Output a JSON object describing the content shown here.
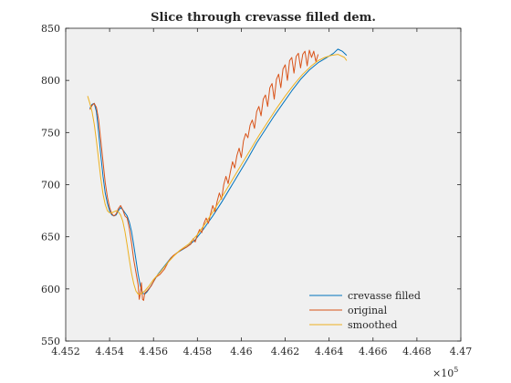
{
  "chart_data": {
    "type": "line",
    "title": "Slice through crevasse filled dem.",
    "xlabel": "",
    "ylabel": "",
    "xlim": [
      4.452,
      4.47
    ],
    "ylim": [
      550,
      850
    ],
    "x_multiplier_label": "×10",
    "x_multiplier_exponent": "5",
    "xticks": [
      4.452,
      4.454,
      4.456,
      4.458,
      4.46,
      4.462,
      4.464,
      4.466,
      4.468,
      4.47
    ],
    "xtick_labels": [
      "4.452",
      "4.454",
      "4.456",
      "4.458",
      "4.46",
      "4.462",
      "4.464",
      "4.466",
      "4.468",
      "4.47"
    ],
    "yticks": [
      550,
      600,
      650,
      700,
      750,
      800,
      850
    ],
    "ytick_labels": [
      "550",
      "600",
      "650",
      "700",
      "750",
      "800",
      "850"
    ],
    "grid": false,
    "legend_position": "bottom-right",
    "background": "#f0f0f0",
    "series": [
      {
        "name": "crevasse filled",
        "color": "#0072bd",
        "points": [
          [
            4.4531,
            773
          ],
          [
            4.4532,
            777
          ],
          [
            4.4533,
            778
          ],
          [
            4.4534,
            770
          ],
          [
            4.4535,
            750
          ],
          [
            4.4536,
            728
          ],
          [
            4.4537,
            708
          ],
          [
            4.4538,
            692
          ],
          [
            4.4539,
            682
          ],
          [
            4.454,
            675
          ],
          [
            4.4541,
            671
          ],
          [
            4.4542,
            670
          ],
          [
            4.4543,
            671
          ],
          [
            4.4544,
            675
          ],
          [
            4.4545,
            678
          ],
          [
            4.4546,
            676
          ],
          [
            4.4547,
            673
          ],
          [
            4.4548,
            670
          ],
          [
            4.4549,
            664
          ],
          [
            4.455,
            655
          ],
          [
            4.4551,
            642
          ],
          [
            4.4552,
            628
          ],
          [
            4.4553,
            614
          ],
          [
            4.4554,
            603
          ],
          [
            4.4555,
            596
          ],
          [
            4.4556,
            595
          ],
          [
            4.4557,
            597
          ],
          [
            4.4558,
            600
          ],
          [
            4.456,
            607
          ],
          [
            4.4562,
            614
          ],
          [
            4.4565,
            622
          ],
          [
            4.4568,
            630
          ],
          [
            4.4571,
            635
          ],
          [
            4.4575,
            640
          ],
          [
            4.4579,
            647
          ],
          [
            4.4583,
            658
          ],
          [
            4.4587,
            670
          ],
          [
            4.4591,
            683
          ],
          [
            4.4595,
            697
          ],
          [
            4.4599,
            711
          ],
          [
            4.4603,
            725
          ],
          [
            4.4607,
            740
          ],
          [
            4.4611,
            753
          ],
          [
            4.4615,
            766
          ],
          [
            4.4619,
            778
          ],
          [
            4.4623,
            790
          ],
          [
            4.4627,
            801
          ],
          [
            4.4631,
            810
          ],
          [
            4.4635,
            817
          ],
          [
            4.4639,
            822
          ],
          [
            4.4642,
            826
          ],
          [
            4.4644,
            830
          ],
          [
            4.4646,
            828
          ],
          [
            4.4648,
            824
          ]
        ]
      },
      {
        "name": "original",
        "color": "#d95319",
        "points": [
          [
            4.4531,
            772
          ],
          [
            4.4532,
            776
          ],
          [
            4.4533,
            778
          ],
          [
            4.4534,
            774
          ],
          [
            4.4535,
            762
          ],
          [
            4.4536,
            742
          ],
          [
            4.4537,
            722
          ],
          [
            4.4538,
            702
          ],
          [
            4.4539,
            688
          ],
          [
            4.454,
            678
          ],
          [
            4.4541,
            672
          ],
          [
            4.4542,
            670
          ],
          [
            4.4543,
            672
          ],
          [
            4.4544,
            677
          ],
          [
            4.4545,
            680
          ],
          [
            4.4546,
            676
          ],
          [
            4.4547,
            670
          ],
          [
            4.4548,
            668
          ],
          [
            4.4549,
            658
          ],
          [
            4.455,
            644
          ],
          [
            4.4551,
            628
          ],
          [
            4.4552,
            616
          ],
          [
            4.4553,
            604
          ],
          [
            4.45535,
            590
          ],
          [
            4.4554,
            596
          ],
          [
            4.45545,
            606
          ],
          [
            4.4555,
            590
          ],
          [
            4.45555,
            589
          ],
          [
            4.4556,
            596
          ],
          [
            4.4557,
            598
          ],
          [
            4.4559,
            603
          ],
          [
            4.4561,
            611
          ],
          [
            4.4563,
            614
          ],
          [
            4.4565,
            619
          ],
          [
            4.4567,
            627
          ],
          [
            4.4569,
            632
          ],
          [
            4.4571,
            635
          ],
          [
            4.4573,
            638
          ],
          [
            4.4575,
            640
          ],
          [
            4.4577,
            643
          ],
          [
            4.4578,
            648
          ],
          [
            4.4579,
            645
          ],
          [
            4.458,
            652
          ],
          [
            4.4581,
            657
          ],
          [
            4.4582,
            654
          ],
          [
            4.4583,
            663
          ],
          [
            4.4584,
            668
          ],
          [
            4.4585,
            663
          ],
          [
            4.4586,
            672
          ],
          [
            4.4587,
            680
          ],
          [
            4.4588,
            674
          ],
          [
            4.4589,
            684
          ],
          [
            4.459,
            692
          ],
          [
            4.4591,
            686
          ],
          [
            4.4592,
            700
          ],
          [
            4.4593,
            708
          ],
          [
            4.4594,
            701
          ],
          [
            4.4595,
            712
          ],
          [
            4.4596,
            722
          ],
          [
            4.4597,
            716
          ],
          [
            4.4598,
            728
          ],
          [
            4.4599,
            735
          ],
          [
            4.46,
            726
          ],
          [
            4.4601,
            742
          ],
          [
            4.4602,
            749
          ],
          [
            4.4603,
            745
          ],
          [
            4.4604,
            757
          ],
          [
            4.4605,
            762
          ],
          [
            4.4606,
            754
          ],
          [
            4.4607,
            770
          ],
          [
            4.4608,
            775
          ],
          [
            4.4609,
            766
          ],
          [
            4.461,
            782
          ],
          [
            4.4611,
            786
          ],
          [
            4.4612,
            775
          ],
          [
            4.4613,
            793
          ],
          [
            4.4614,
            797
          ],
          [
            4.4615,
            782
          ],
          [
            4.4616,
            801
          ],
          [
            4.4617,
            806
          ],
          [
            4.4618,
            793
          ],
          [
            4.4619,
            811
          ],
          [
            4.462,
            815
          ],
          [
            4.4621,
            800
          ],
          [
            4.4622,
            819
          ],
          [
            4.4623,
            822
          ],
          [
            4.4624,
            807
          ],
          [
            4.4625,
            823
          ],
          [
            4.4626,
            826
          ],
          [
            4.4627,
            812
          ],
          [
            4.4628,
            825
          ],
          [
            4.4629,
            828
          ],
          [
            4.463,
            814
          ],
          [
            4.4631,
            829
          ],
          [
            4.4632,
            822
          ],
          [
            4.4633,
            828
          ],
          [
            4.4634,
            818
          ],
          [
            4.4635,
            825
          ]
        ]
      },
      {
        "name": "smoothed",
        "color": "#edb120",
        "points": [
          [
            4.453,
            785
          ],
          [
            4.4531,
            778
          ],
          [
            4.4532,
            770
          ],
          [
            4.4533,
            758
          ],
          [
            4.4534,
            742
          ],
          [
            4.4535,
            724
          ],
          [
            4.4536,
            706
          ],
          [
            4.4537,
            691
          ],
          [
            4.4538,
            681
          ],
          [
            4.4539,
            675
          ],
          [
            4.454,
            673
          ],
          [
            4.4541,
            673
          ],
          [
            4.4542,
            674
          ],
          [
            4.4543,
            675
          ],
          [
            4.4544,
            674
          ],
          [
            4.4545,
            671
          ],
          [
            4.4546,
            665
          ],
          [
            4.4547,
            655
          ],
          [
            4.4548,
            642
          ],
          [
            4.4549,
            628
          ],
          [
            4.455,
            615
          ],
          [
            4.4551,
            605
          ],
          [
            4.4552,
            598
          ],
          [
            4.4553,
            595
          ],
          [
            4.4554,
            595
          ],
          [
            4.4556,
            598
          ],
          [
            4.4558,
            603
          ],
          [
            4.456,
            609
          ],
          [
            4.4563,
            616
          ],
          [
            4.4566,
            624
          ],
          [
            4.4569,
            631
          ],
          [
            4.4572,
            637
          ],
          [
            4.4576,
            643
          ],
          [
            4.458,
            652
          ],
          [
            4.4584,
            664
          ],
          [
            4.4588,
            677
          ],
          [
            4.4592,
            691
          ],
          [
            4.4596,
            705
          ],
          [
            4.46,
            719
          ],
          [
            4.4604,
            733
          ],
          [
            4.4608,
            747
          ],
          [
            4.4612,
            760
          ],
          [
            4.4616,
            773
          ],
          [
            4.462,
            785
          ],
          [
            4.4624,
            796
          ],
          [
            4.4628,
            806
          ],
          [
            4.4632,
            814
          ],
          [
            4.4635,
            819
          ],
          [
            4.4638,
            822
          ],
          [
            4.4641,
            824
          ],
          [
            4.4644,
            825
          ],
          [
            4.4647,
            822
          ],
          [
            4.4648,
            819
          ]
        ]
      }
    ]
  }
}
